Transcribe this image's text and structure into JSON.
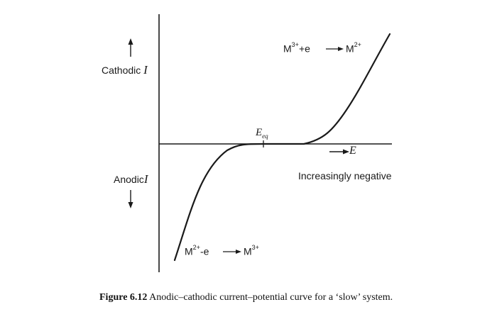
{
  "labels": {
    "cathodic": "Cathodic",
    "anodic": "Anodic",
    "current_symbol": "I",
    "eq_symbol": "E",
    "eq_subscript": "eq",
    "e_axis": "E",
    "increasingly_negative": "Increasingly negative"
  },
  "reactions": {
    "cathodic": {
      "left": "M",
      "left_charge": "3+",
      "mid": "+e",
      "right": "M",
      "right_charge": "2+"
    },
    "anodic": {
      "left": "M",
      "left_charge": "2+",
      "mid": "-e",
      "right": "M",
      "right_charge": "3+"
    }
  },
  "caption": {
    "number": "Figure 6.12",
    "text": "Anodic–cathodic current–potential curve for a ‘slow’ system."
  },
  "colors": {
    "ink": "#1a1a1a"
  }
}
